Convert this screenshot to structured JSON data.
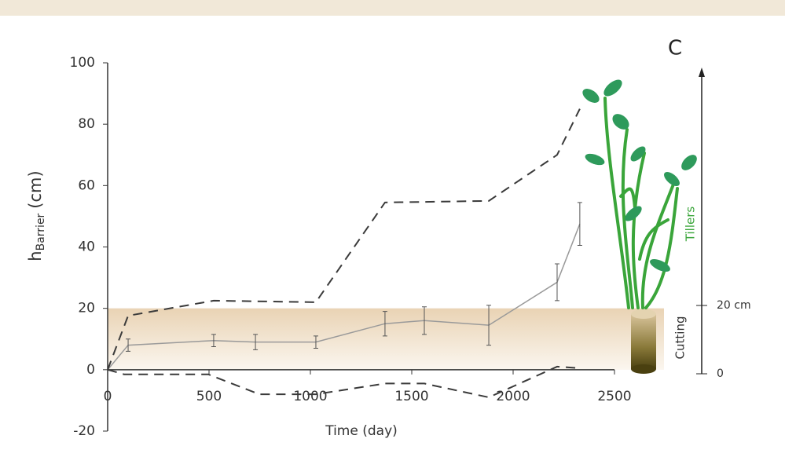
{
  "chart_data": {
    "type": "line",
    "title": "C",
    "x_label": "Time (day)",
    "y_label": "h",
    "y_label_sub": "Barrier",
    "y_label_unit": "(cm)",
    "xlim": [
      0,
      2500
    ],
    "xticks": [
      0,
      500,
      1000,
      1500,
      2000,
      2500
    ],
    "ylim": [
      -20,
      100
    ],
    "yticks": [
      -20,
      0,
      20,
      40,
      60,
      80,
      100
    ],
    "band": [
      0,
      20
    ],
    "band_color": "#ecd9bf",
    "series": [
      {
        "color": "#9a9a9a",
        "dash": false,
        "x": [
          0,
          101,
          523,
          729,
          1027,
          1368,
          1562,
          1880,
          2217,
          2329
        ],
        "values": [
          0,
          8,
          9.5,
          9,
          9,
          15,
          16,
          14.5,
          28.5,
          47.5
        ],
        "errors": [
          null,
          2,
          2,
          2.5,
          2,
          4,
          4.5,
          6.5,
          6,
          7
        ]
      },
      {
        "color": "#3a3a3a",
        "dash": true,
        "x": [
          0,
          101,
          523,
          1027,
          1368,
          1880,
          2217,
          2329
        ],
        "values": [
          0,
          17.6,
          22.5,
          22,
          54.5,
          55,
          70,
          85
        ]
      },
      {
        "color": "#3a3a3a",
        "dash": true,
        "x": [
          0,
          81,
          496,
          748,
          1027,
          1368,
          1562,
          1880,
          2217,
          2329
        ],
        "values": [
          0,
          -1.5,
          -1.5,
          -8,
          -8,
          -4.5,
          -4.5,
          -9,
          1,
          0.5
        ]
      }
    ],
    "y2lim": [
      0,
      89
    ],
    "y2ticks": [
      {
        "value": 0,
        "label": "0"
      },
      {
        "value": 20,
        "label": "20 cm"
      }
    ],
    "annotations": [
      "Tillers",
      "Cutting"
    ]
  }
}
